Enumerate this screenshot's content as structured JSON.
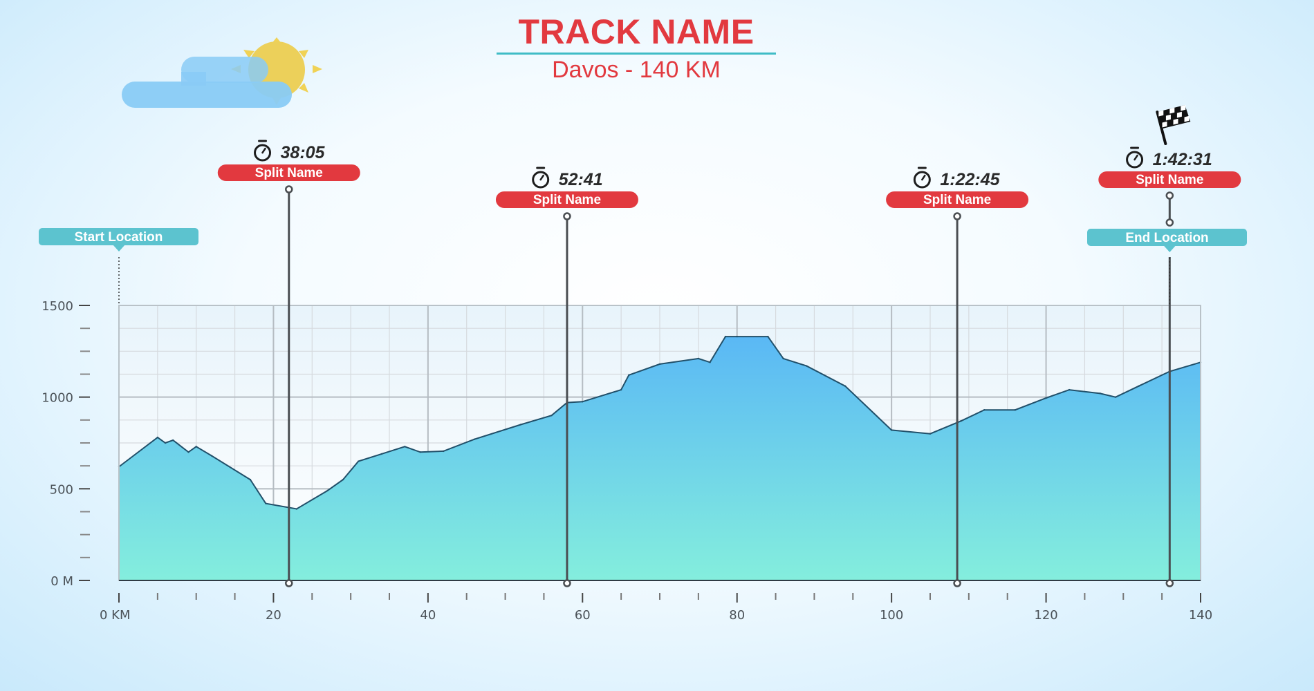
{
  "header": {
    "title": "TRACK NAME",
    "subtitle": "Davos - 140 KM"
  },
  "weather_icon": "sun-behind-cloud-icon",
  "flag_icon": "checkered-flag-icon",
  "timer_icon": "stopwatch-icon",
  "colors": {
    "accent_red": "#e2393f",
    "accent_teal": "#5cc3cf",
    "area_top": "#5ab8f5",
    "area_bottom": "#84eedd",
    "line": "#21506a"
  },
  "locations": {
    "start": {
      "label": "Start Location",
      "km": 0
    },
    "end": {
      "label": "End Location",
      "km": 136
    }
  },
  "splits": [
    {
      "name": "Split Name",
      "time": "38:05",
      "km": 22
    },
    {
      "name": "Split Name",
      "time": "52:41",
      "km": 58
    },
    {
      "name": "Split Name",
      "time": "1:22:45",
      "km": 108.5
    },
    {
      "name": "Split Name",
      "time": "1:42:31",
      "km": 136,
      "finish": true
    }
  ],
  "chart_data": {
    "type": "area",
    "title": "",
    "xlabel": "",
    "ylabel": "",
    "xlim": [
      0,
      140
    ],
    "ylim": [
      0,
      1500
    ],
    "x_ticks": [
      0,
      20,
      40,
      60,
      80,
      100,
      120,
      140
    ],
    "x_tick_labels": [
      "0 KM",
      "20",
      "40",
      "60",
      "80",
      "100",
      "120",
      "140"
    ],
    "y_ticks": [
      0,
      500,
      1000,
      1500
    ],
    "y_tick_labels": [
      "0 M",
      "500",
      "1000",
      "1500"
    ],
    "grid": true,
    "series": [
      {
        "x": [
          0,
          5,
          6,
          7,
          9,
          10,
          12,
          17,
          19,
          23,
          27,
          29,
          31,
          34,
          37,
          39,
          42,
          46,
          52,
          56,
          58,
          60,
          65,
          66,
          70,
          75,
          76.5,
          78.5,
          80,
          84,
          86,
          89,
          94,
          100,
          105,
          109,
          112,
          116,
          120,
          123,
          127,
          129,
          132,
          136,
          140
        ],
        "y": [
          620,
          780,
          750,
          765,
          700,
          730,
          680,
          550,
          420,
          390,
          490,
          550,
          650,
          690,
          730,
          700,
          705,
          770,
          850,
          900,
          970,
          975,
          1040,
          1120,
          1180,
          1210,
          1190,
          1330,
          1330,
          1330,
          1210,
          1170,
          1060,
          820,
          800,
          870,
          930,
          930,
          995,
          1040,
          1020,
          1000,
          1060,
          1140,
          1190
        ]
      }
    ]
  }
}
